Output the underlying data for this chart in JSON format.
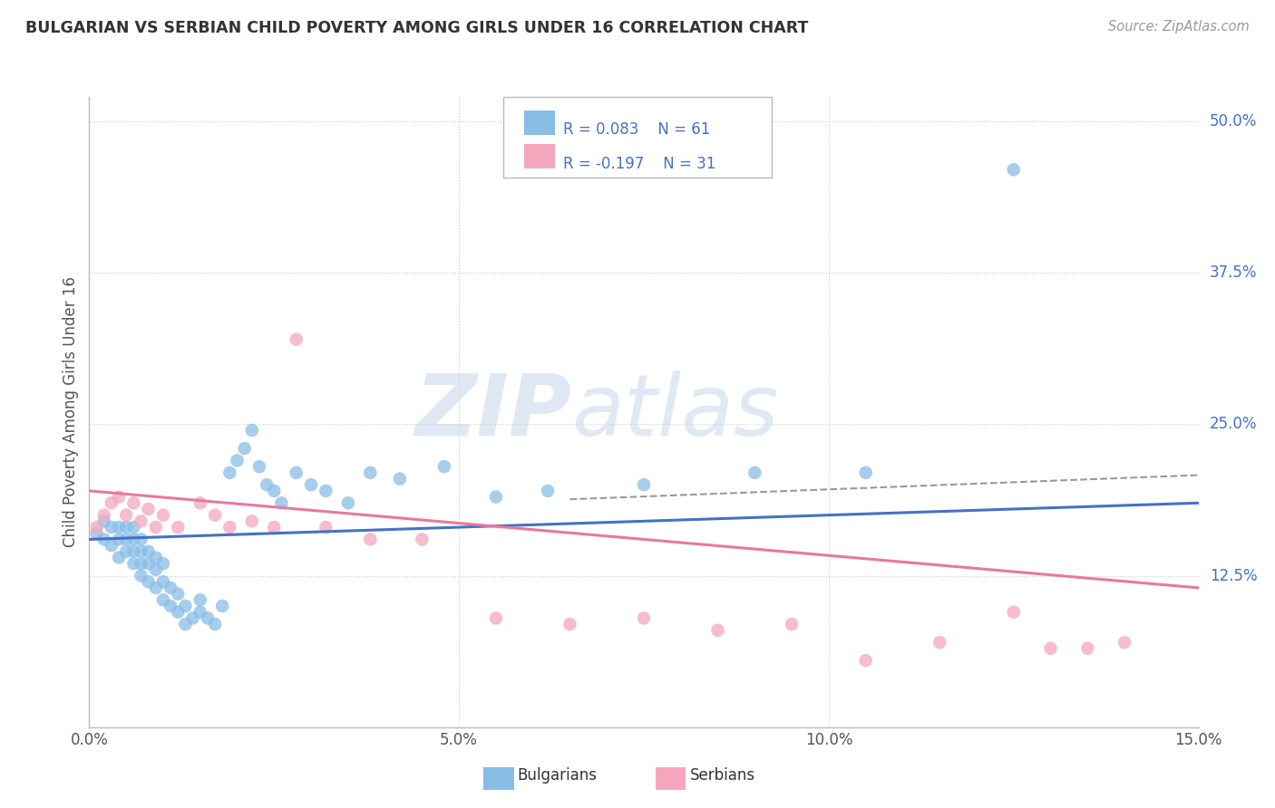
{
  "title": "BULGARIAN VS SERBIAN CHILD POVERTY AMONG GIRLS UNDER 16 CORRELATION CHART",
  "source": "Source: ZipAtlas.com",
  "ylabel": "Child Poverty Among Girls Under 16",
  "xlim": [
    0.0,
    0.15
  ],
  "ylim": [
    0.0,
    0.52
  ],
  "xticks": [
    0.0,
    0.05,
    0.1,
    0.15
  ],
  "xticklabels": [
    "0.0%",
    "5.0%",
    "10.0%",
    "15.0%"
  ],
  "ytick_positions": [
    0.125,
    0.25,
    0.375,
    0.5
  ],
  "ytick_labels": [
    "12.5%",
    "25.0%",
    "37.5%",
    "50.0%"
  ],
  "bg_color": "#ffffff",
  "grid_color": "#cccccc",
  "bulgarian_color": "#88bde6",
  "serbian_color": "#f4a7bc",
  "legend_r1": "R = 0.083",
  "legend_n1": "N = 61",
  "legend_r2": "R = -0.197",
  "legend_n2": "N = 31",
  "watermark_zip": "ZIP",
  "watermark_atlas": "atlas",
  "blue_line_x": [
    0.0,
    0.15
  ],
  "blue_line_y": [
    0.155,
    0.185
  ],
  "pink_line_x": [
    0.0,
    0.15
  ],
  "pink_line_y": [
    0.195,
    0.115
  ],
  "dashed_line_x": [
    0.065,
    0.15
  ],
  "dashed_line_y": [
    0.188,
    0.208
  ],
  "bulgarians_x": [
    0.001,
    0.002,
    0.002,
    0.003,
    0.003,
    0.004,
    0.004,
    0.004,
    0.005,
    0.005,
    0.005,
    0.006,
    0.006,
    0.006,
    0.006,
    0.007,
    0.007,
    0.007,
    0.007,
    0.008,
    0.008,
    0.008,
    0.009,
    0.009,
    0.009,
    0.01,
    0.01,
    0.01,
    0.011,
    0.011,
    0.012,
    0.012,
    0.013,
    0.013,
    0.014,
    0.015,
    0.015,
    0.016,
    0.017,
    0.018,
    0.019,
    0.02,
    0.021,
    0.022,
    0.023,
    0.024,
    0.025,
    0.026,
    0.028,
    0.03,
    0.032,
    0.035,
    0.038,
    0.042,
    0.048,
    0.055,
    0.062,
    0.075,
    0.09,
    0.105,
    0.125
  ],
  "bulgarians_y": [
    0.16,
    0.155,
    0.17,
    0.15,
    0.165,
    0.14,
    0.155,
    0.165,
    0.145,
    0.155,
    0.165,
    0.135,
    0.145,
    0.155,
    0.165,
    0.125,
    0.135,
    0.145,
    0.155,
    0.12,
    0.135,
    0.145,
    0.115,
    0.13,
    0.14,
    0.105,
    0.12,
    0.135,
    0.1,
    0.115,
    0.095,
    0.11,
    0.085,
    0.1,
    0.09,
    0.095,
    0.105,
    0.09,
    0.085,
    0.1,
    0.21,
    0.22,
    0.23,
    0.245,
    0.215,
    0.2,
    0.195,
    0.185,
    0.21,
    0.2,
    0.195,
    0.185,
    0.21,
    0.205,
    0.215,
    0.19,
    0.195,
    0.2,
    0.21,
    0.21,
    0.46
  ],
  "serbians_x": [
    0.001,
    0.002,
    0.003,
    0.004,
    0.005,
    0.006,
    0.007,
    0.008,
    0.009,
    0.01,
    0.012,
    0.015,
    0.017,
    0.019,
    0.022,
    0.025,
    0.028,
    0.032,
    0.038,
    0.045,
    0.055,
    0.065,
    0.075,
    0.085,
    0.095,
    0.105,
    0.115,
    0.125,
    0.13,
    0.135,
    0.14
  ],
  "serbians_y": [
    0.165,
    0.175,
    0.185,
    0.19,
    0.175,
    0.185,
    0.17,
    0.18,
    0.165,
    0.175,
    0.165,
    0.185,
    0.175,
    0.165,
    0.17,
    0.165,
    0.32,
    0.165,
    0.155,
    0.155,
    0.09,
    0.085,
    0.09,
    0.08,
    0.085,
    0.055,
    0.07,
    0.095,
    0.065,
    0.065,
    0.07
  ]
}
